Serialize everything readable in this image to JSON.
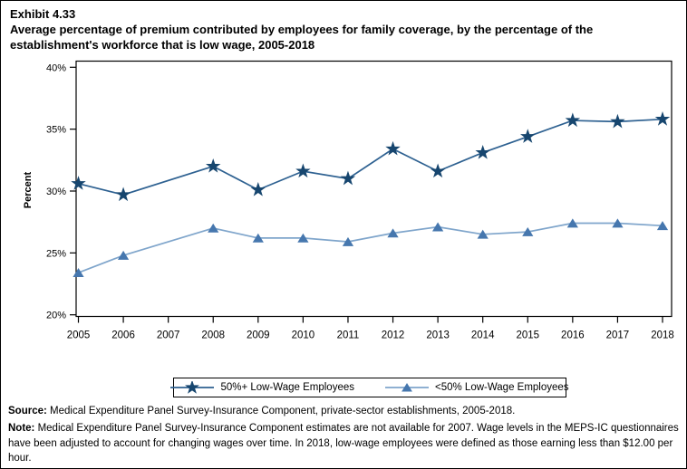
{
  "exhibit": {
    "number": "Exhibit 4.33",
    "title": "Average percentage of premium contributed by employees for family coverage, by the percentage of the establishment's workforce that is low wage, 2005-2018"
  },
  "chart_data": {
    "type": "line",
    "title": "Average percentage of premium contributed by employees for family coverage, by the percentage of the establishment's workforce that is low wage, 2005-2018",
    "xlabel": "",
    "ylabel": "Percent",
    "x": [
      2005,
      2006,
      2007,
      2008,
      2009,
      2010,
      2011,
      2012,
      2013,
      2014,
      2015,
      2016,
      2017,
      2018
    ],
    "x_tick_labels": [
      "2005",
      "2006",
      "2007",
      "2008",
      "2009",
      "2010",
      "2011",
      "2012",
      "2013",
      "2014",
      "2015",
      "2016",
      "2017",
      "2018"
    ],
    "y_ticks": [
      20,
      25,
      30,
      35,
      40
    ],
    "y_tick_labels": [
      "20%",
      "25%",
      "30%",
      "35%",
      "40%"
    ],
    "ylim": [
      19.9,
      40.5
    ],
    "grid": false,
    "legend_position": "bottom",
    "note_gap_year": 2007,
    "series": [
      {
        "name": "50%+ Low-Wage Employees",
        "marker": "star",
        "marker_color": "#17466F",
        "line_color": "#2E6191",
        "values": [
          30.6,
          29.7,
          null,
          32.0,
          30.1,
          31.6,
          31.0,
          33.4,
          31.6,
          33.1,
          34.4,
          35.7,
          35.6,
          35.8
        ]
      },
      {
        "name": "<50% Low-Wage Employees",
        "marker": "triangle",
        "marker_color": "#4677AE",
        "line_color": "#7FA5CB",
        "values": [
          23.4,
          24.8,
          null,
          27.0,
          26.2,
          26.2,
          25.9,
          26.6,
          27.1,
          26.5,
          26.7,
          27.4,
          27.4,
          27.2
        ]
      }
    ]
  },
  "footnotes": {
    "source_label": "Source:",
    "source_text": " Medical Expenditure Panel Survey-Insurance Component, private-sector establishments, 2005-2018.",
    "note_label": "Note:",
    "note_text": " Medical Expenditure Panel Survey-Insurance Component estimates are not available for 2007. Wage levels in the MEPS-IC questionnaires have been adjusted to account for changing wages over time.  In 2018, low-wage employees were defined as those earning less than $12.00 per hour."
  }
}
